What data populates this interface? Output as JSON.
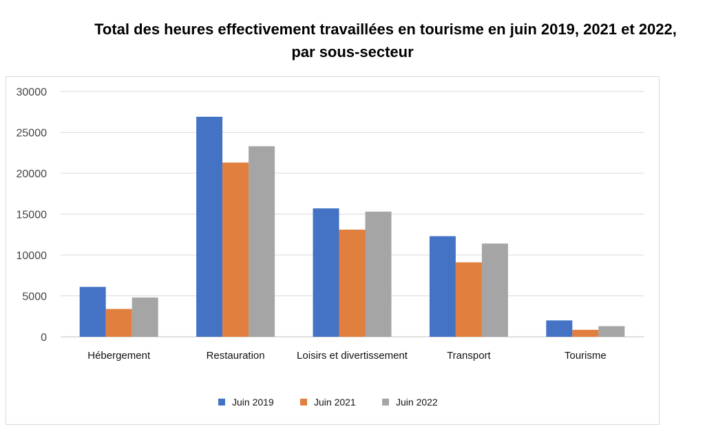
{
  "title_line1": "Total des heures effectivement travaillées en tourisme en juin 2019, 2021 et 2022,",
  "title_line2": "par sous-secteur",
  "chart_data": {
    "type": "bar",
    "title": "Total des heures effectivement travaillées en tourisme en juin 2019, 2021 et 2022, par sous-secteur",
    "categories": [
      "Hébergement",
      "Restauration",
      "Loisirs et divertissement",
      "Transport",
      "Tourisme"
    ],
    "series": [
      {
        "name": "Juin 2019",
        "color": "#4472C4",
        "values": [
          6100,
          26900,
          15700,
          12300,
          2000
        ]
      },
      {
        "name": "Juin 2021",
        "color": "#E07F3E",
        "values": [
          3400,
          21300,
          13100,
          9100,
          850
        ]
      },
      {
        "name": "Juin 2022",
        "color": "#A5A5A5",
        "values": [
          4800,
          23300,
          15300,
          11400,
          1300
        ]
      }
    ],
    "yticks": [
      0,
      5000,
      10000,
      15000,
      20000,
      25000,
      30000
    ],
    "ylim": [
      0,
      30000
    ],
    "grid": true,
    "legend": "bottom",
    "xlabel": "",
    "ylabel": ""
  }
}
